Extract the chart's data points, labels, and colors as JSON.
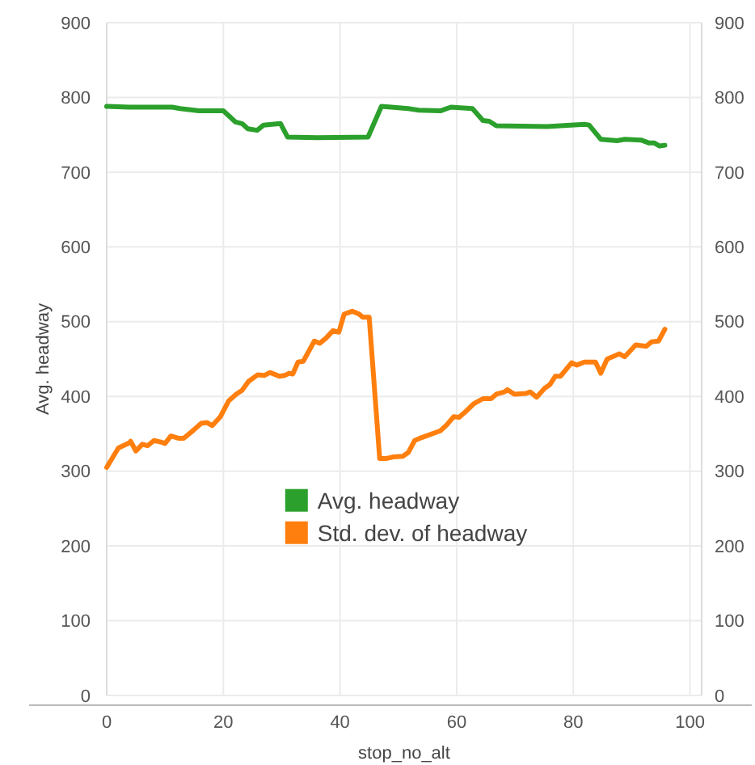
{
  "chart_data": {
    "type": "line",
    "xlabel": "stop_no_alt",
    "ylabel": "Avg. headway",
    "xlim": [
      0,
      102
    ],
    "xticks": [
      0,
      20,
      40,
      60,
      80,
      100
    ],
    "ylim": [
      0,
      900
    ],
    "yticks": [
      0,
      100,
      200,
      300,
      400,
      500,
      600,
      700,
      800,
      900
    ],
    "y2lim": [
      0,
      900
    ],
    "y2ticks": [
      0,
      100,
      200,
      300,
      400,
      500,
      600,
      700,
      800,
      900
    ],
    "grid": true,
    "legend": "bottom",
    "marker": "none",
    "line_style": "solid",
    "series": [
      {
        "name": "Avg. headway",
        "color": "#2ca02c",
        "x": [
          0,
          3.9,
          11.2,
          12.6,
          15.8,
          20,
          22.1,
          23.2,
          24.2,
          25.8,
          26.9,
          29.8,
          31,
          36.1,
          44.8,
          47.1,
          51.7,
          53.5,
          57.2,
          59,
          62.7,
          64.5,
          65.6,
          66.8,
          75.5,
          81.9,
          82.7,
          84.7,
          87.5,
          88.8,
          91.6,
          93,
          93.9,
          94.8,
          95.7
        ],
        "values": [
          788,
          787,
          787,
          785,
          782,
          782,
          767,
          765,
          758,
          756,
          763,
          765,
          747,
          746,
          747,
          788,
          785,
          783,
          782,
          787,
          785,
          769,
          768,
          762,
          761,
          764,
          763,
          744,
          742,
          744,
          743,
          739,
          739,
          735,
          736
        ]
      },
      {
        "name": "Std. dev. of headway",
        "color": "#ff7f0e",
        "x": [
          0,
          2,
          3.9,
          4.1,
          5,
          6.1,
          7,
          8.1,
          9.3,
          10,
          11,
          12.3,
          13.2,
          14.9,
          16.2,
          17.2,
          18.1,
          19.5,
          20.9,
          22.2,
          23.2,
          24.3,
          25.9,
          27,
          28,
          29.6,
          30.5,
          31.3,
          31.9,
          32.8,
          33.7,
          35.6,
          36.5,
          37.6,
          38.8,
          39.8,
          40.7,
          42.1,
          43.3,
          43.9,
          45,
          46.8,
          48,
          49.1,
          50.8,
          51.7,
          52.8,
          54,
          57.2,
          58.3,
          59.5,
          60.4,
          61.3,
          62.9,
          64.5,
          65.9,
          66.8,
          68.2,
          68.7,
          69.9,
          71.9,
          72.6,
          73.7,
          75.1,
          76,
          76.9,
          77.8,
          79.7,
          80.6,
          81.9,
          83.8,
          84.7,
          85.8,
          87.9,
          88.8,
          90.7,
          92.5,
          93.4,
          94.6,
          95.7
        ],
        "values": [
          305,
          331,
          338,
          340,
          327,
          336,
          334,
          341,
          339,
          337,
          347,
          344,
          344,
          355,
          364,
          365,
          361,
          373,
          394,
          403,
          408,
          420,
          429,
          428,
          432,
          427,
          428,
          431,
          430,
          446,
          447,
          474,
          471,
          478,
          488,
          486,
          510,
          514,
          510,
          506,
          506,
          317,
          317,
          319,
          320,
          325,
          341,
          345,
          354,
          362,
          373,
          372,
          378,
          390,
          397,
          397,
          403,
          406,
          409,
          403,
          404,
          406,
          399,
          411,
          416,
          427,
          427,
          445,
          442,
          446,
          446,
          431,
          450,
          457,
          453,
          469,
          467,
          473,
          474,
          490
        ]
      }
    ]
  }
}
